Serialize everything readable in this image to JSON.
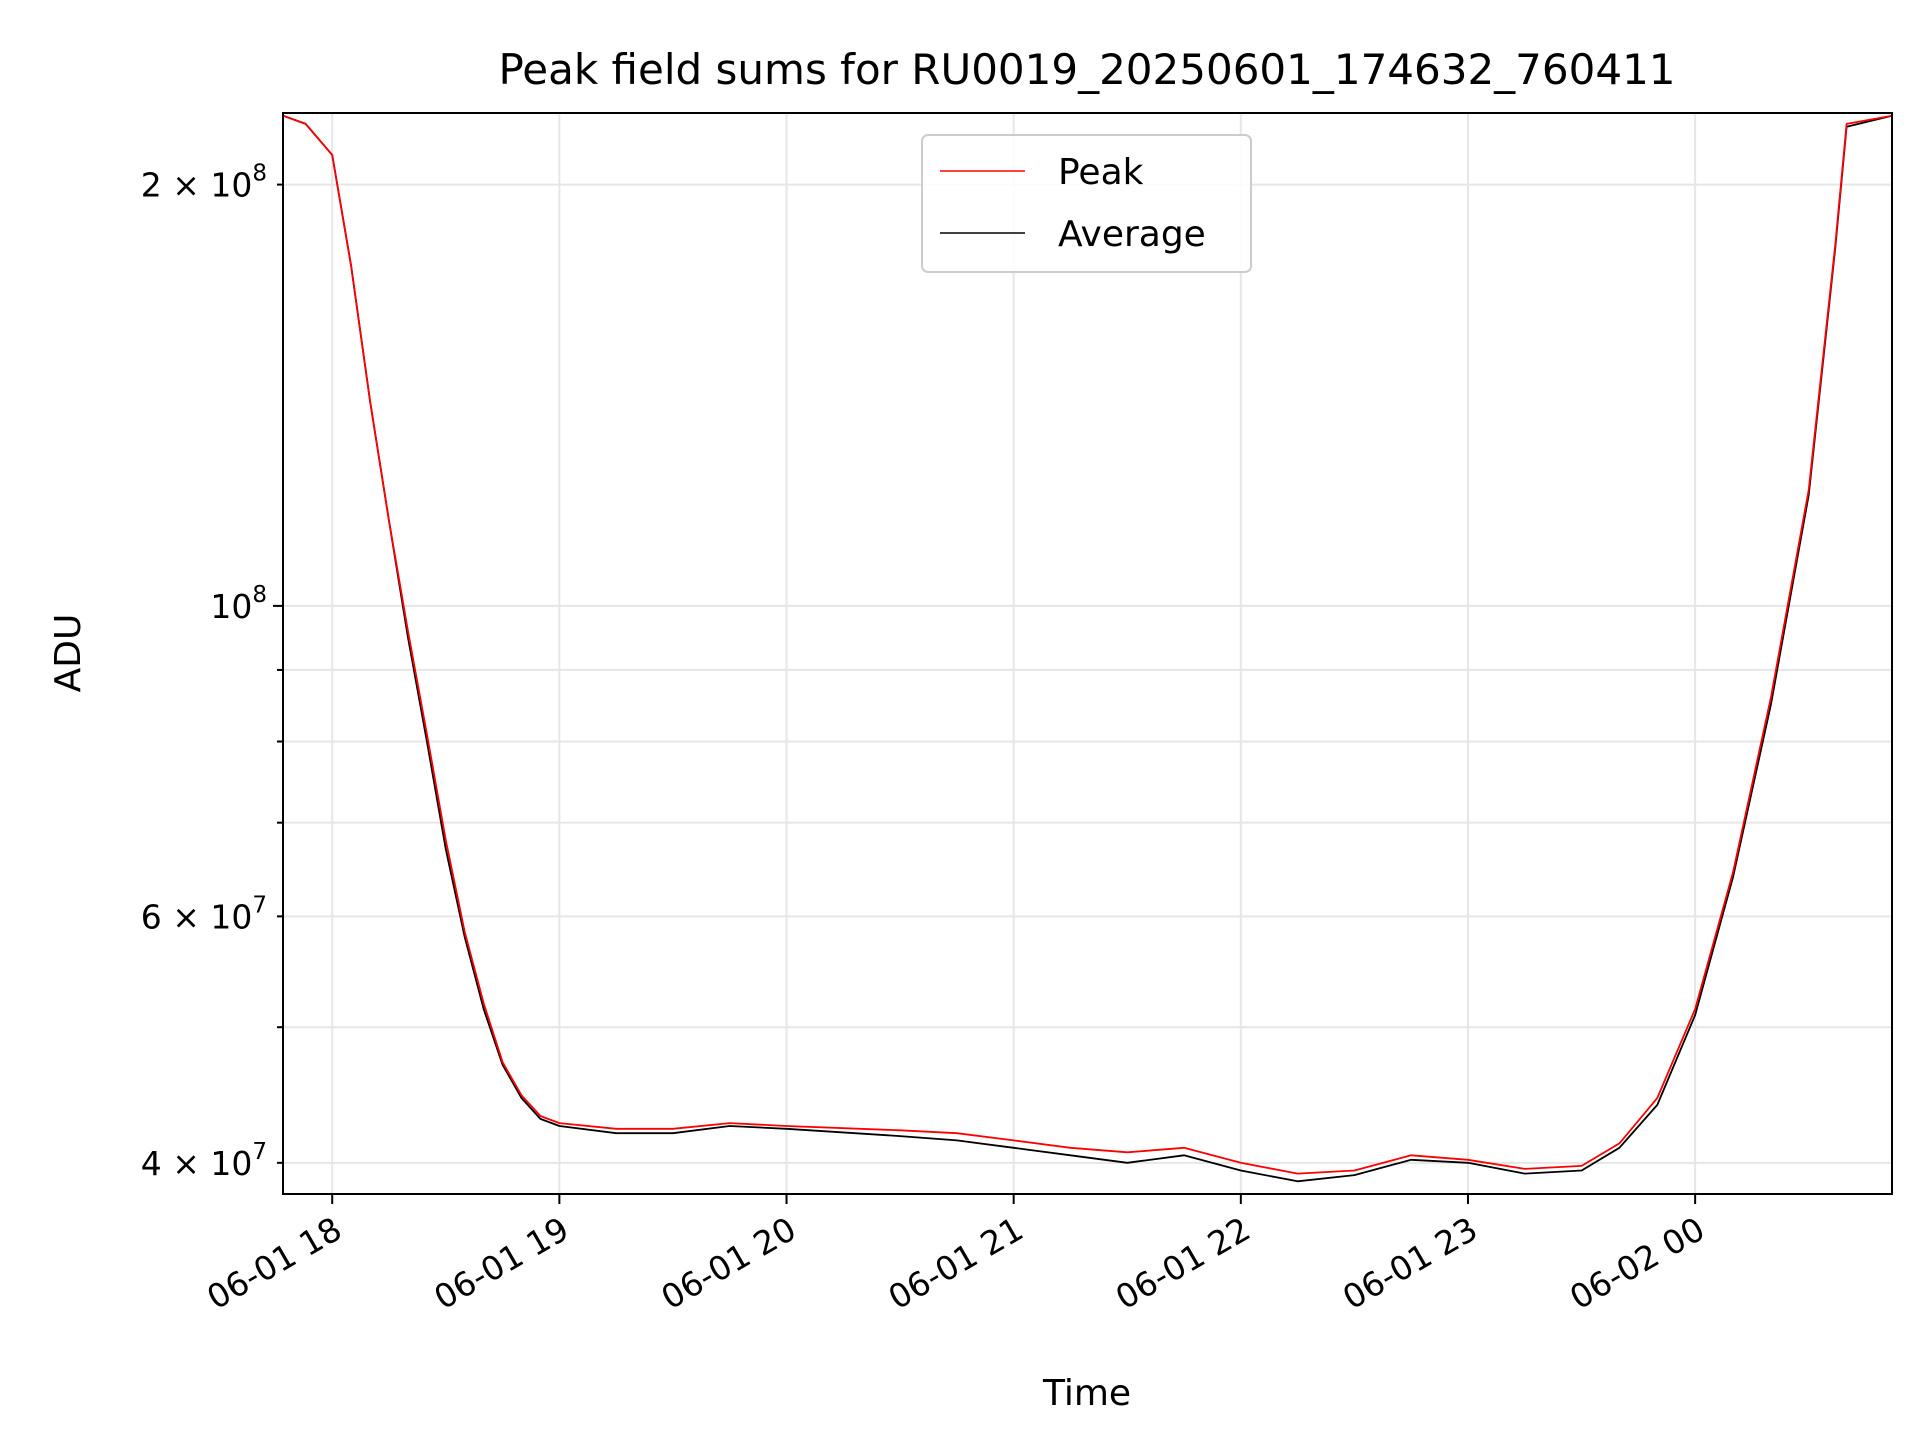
{
  "chart_data": {
    "type": "line",
    "title": "Peak field sums for RU0019_20250601_174632_760411",
    "xlabel": "Time",
    "ylabel": "ADU",
    "yscale": "log",
    "xlim": [
      "2025-06-01 17:47",
      "2025-06-02 00:52"
    ],
    "ylim": [
      38000000,
      225000000
    ],
    "grid": true,
    "legend": "upper center",
    "colors": {
      "Peak": "#ff0000",
      "Average": "#000000",
      "grid": "#e6e6e6"
    },
    "x_ticks": [
      {
        "t": "2025-06-01 18:00",
        "label": "06-01 18"
      },
      {
        "t": "2025-06-01 19:00",
        "label": "06-01 19"
      },
      {
        "t": "2025-06-01 20:00",
        "label": "06-01 20"
      },
      {
        "t": "2025-06-01 21:00",
        "label": "06-01 21"
      },
      {
        "t": "2025-06-01 22:00",
        "label": "06-01 22"
      },
      {
        "t": "2025-06-01 23:00",
        "label": "06-01 23"
      },
      {
        "t": "2025-06-02 00:00",
        "label": "06-02 00"
      }
    ],
    "y_ticks_major": [
      {
        "value": 100000000,
        "mantissa": "",
        "base": "10",
        "exp": "8"
      }
    ],
    "y_ticks_minor": [
      {
        "value": 40000000,
        "mantissa": "4",
        "base": "10",
        "exp": "7"
      },
      {
        "value": 50000000,
        "mantissa": "",
        "base": "",
        "exp": ""
      },
      {
        "value": 60000000,
        "mantissa": "6",
        "base": "10",
        "exp": "7"
      },
      {
        "value": 70000000,
        "mantissa": "",
        "base": "",
        "exp": ""
      },
      {
        "value": 80000000,
        "mantissa": "",
        "base": "",
        "exp": ""
      },
      {
        "value": 90000000,
        "mantissa": "",
        "base": "",
        "exp": ""
      },
      {
        "value": 200000000,
        "mantissa": "2",
        "base": "10",
        "exp": "8"
      }
    ],
    "series": [
      {
        "name": "Average",
        "x": [
          "2025-06-01 17:47",
          "2025-06-01 17:53",
          "2025-06-01 18:00",
          "2025-06-01 18:05",
          "2025-06-01 18:10",
          "2025-06-01 18:15",
          "2025-06-01 18:20",
          "2025-06-01 18:25",
          "2025-06-01 18:30",
          "2025-06-01 18:35",
          "2025-06-01 18:40",
          "2025-06-01 18:45",
          "2025-06-01 18:50",
          "2025-06-01 18:55",
          "2025-06-01 19:00",
          "2025-06-01 19:15",
          "2025-06-01 19:30",
          "2025-06-01 19:45",
          "2025-06-01 20:00",
          "2025-06-01 20:30",
          "2025-06-01 20:45",
          "2025-06-01 21:00",
          "2025-06-01 21:15",
          "2025-06-01 21:30",
          "2025-06-01 21:45",
          "2025-06-01 22:00",
          "2025-06-01 22:15",
          "2025-06-01 22:30",
          "2025-06-01 22:45",
          "2025-06-01 23:00",
          "2025-06-01 23:15",
          "2025-06-01 23:30",
          "2025-06-01 23:40",
          "2025-06-01 23:50",
          "2025-06-02 00:00",
          "2025-06-02 00:10",
          "2025-06-02 00:20",
          "2025-06-02 00:30",
          "2025-06-02 00:37",
          "2025-06-02 00:40",
          "2025-06-02 00:52"
        ],
        "y": [
          224000000,
          221000000,
          210000000,
          175000000,
          140000000,
          115000000,
          95000000,
          80000000,
          67000000,
          58000000,
          51500000,
          47000000,
          44500000,
          43000000,
          42500000,
          42000000,
          42000000,
          42500000,
          42300000,
          41800000,
          41500000,
          41000000,
          40500000,
          40000000,
          40500000,
          39500000,
          38800000,
          39200000,
          40200000,
          40000000,
          39300000,
          39500000,
          41000000,
          44000000,
          51000000,
          64000000,
          85000000,
          120000000,
          180000000,
          220000000,
          224000000
        ]
      },
      {
        "name": "Peak",
        "x": [
          "2025-06-01 17:47",
          "2025-06-01 17:53",
          "2025-06-01 18:00",
          "2025-06-01 18:05",
          "2025-06-01 18:10",
          "2025-06-01 18:15",
          "2025-06-01 18:20",
          "2025-06-01 18:25",
          "2025-06-01 18:30",
          "2025-06-01 18:35",
          "2025-06-01 18:40",
          "2025-06-01 18:45",
          "2025-06-01 18:50",
          "2025-06-01 18:55",
          "2025-06-01 19:00",
          "2025-06-01 19:15",
          "2025-06-01 19:30",
          "2025-06-01 19:45",
          "2025-06-01 20:00",
          "2025-06-01 20:30",
          "2025-06-01 20:45",
          "2025-06-01 21:00",
          "2025-06-01 21:15",
          "2025-06-01 21:30",
          "2025-06-01 21:45",
          "2025-06-01 22:00",
          "2025-06-01 22:15",
          "2025-06-01 22:30",
          "2025-06-01 22:45",
          "2025-06-01 23:00",
          "2025-06-01 23:15",
          "2025-06-01 23:30",
          "2025-06-01 23:40",
          "2025-06-01 23:50",
          "2025-06-02 00:00",
          "2025-06-02 00:10",
          "2025-06-02 00:20",
          "2025-06-02 00:30",
          "2025-06-02 00:37",
          "2025-06-02 00:40",
          "2025-06-02 00:52"
        ],
        "y": [
          224000000,
          221000000,
          210000000,
          175000000,
          140000000,
          115000000,
          96000000,
          81000000,
          68000000,
          58500000,
          52000000,
          47200000,
          44700000,
          43200000,
          42700000,
          42300000,
          42300000,
          42700000,
          42500000,
          42200000,
          42000000,
          41500000,
          41000000,
          40700000,
          41000000,
          40000000,
          39300000,
          39500000,
          40500000,
          40200000,
          39600000,
          39800000,
          41300000,
          44500000,
          51500000,
          64500000,
          86000000,
          121000000,
          181000000,
          221000000,
          224000000
        ]
      }
    ]
  }
}
